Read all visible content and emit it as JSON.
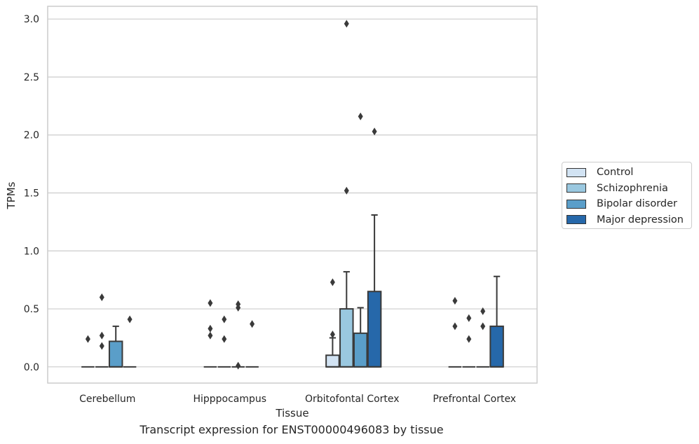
{
  "chart_data": {
    "type": "box",
    "xlabel": "Tissue",
    "ylabel": "TPMs",
    "caption": "Transcript expression for ENST00000496083 by tissue",
    "categories": [
      "Cerebellum",
      "Hipppocampus",
      "Orbitofontal Cortex",
      "Prefrontal Cortex"
    ],
    "ylim": [
      -0.14,
      3.11
    ],
    "yticks": [
      "0.0",
      "0.5",
      "1.0",
      "1.5",
      "2.0",
      "2.5",
      "3.0"
    ],
    "grid": true,
    "legend_position": "right",
    "series": [
      {
        "name": "Control",
        "color": "#d2e3f3",
        "boxes": [
          {
            "q1": 0,
            "median": 0,
            "q3": 0,
            "whisker_low": 0,
            "whisker_high": 0,
            "outliers": [
              0.24
            ]
          },
          {
            "q1": 0,
            "median": 0,
            "q3": 0,
            "whisker_low": 0,
            "whisker_high": 0,
            "outliers": [
              0.27,
              0.33,
              0.55
            ]
          },
          {
            "q1": 0,
            "median": 0,
            "q3": 0.1,
            "whisker_low": 0,
            "whisker_high": 0.25,
            "outliers": [
              0.28,
              0.73
            ]
          },
          {
            "q1": 0,
            "median": 0,
            "q3": 0,
            "whisker_low": 0,
            "whisker_high": 0,
            "outliers": [
              0.35,
              0.57
            ]
          }
        ]
      },
      {
        "name": "Schizophrenia",
        "color": "#9ac8e0",
        "boxes": [
          {
            "q1": 0,
            "median": 0,
            "q3": 0,
            "whisker_low": 0,
            "whisker_high": 0,
            "outliers": [
              0.18,
              0.27,
              0.6
            ]
          },
          {
            "q1": 0,
            "median": 0,
            "q3": 0,
            "whisker_low": 0,
            "whisker_high": 0,
            "outliers": [
              0.24,
              0.41
            ]
          },
          {
            "q1": 0,
            "median": 0,
            "q3": 0.5,
            "whisker_low": 0,
            "whisker_high": 0.82,
            "outliers": [
              1.52,
              2.96
            ]
          },
          {
            "q1": 0,
            "median": 0,
            "q3": 0,
            "whisker_low": 0,
            "whisker_high": 0,
            "outliers": [
              0.24,
              0.42
            ]
          }
        ]
      },
      {
        "name": "Bipolar disorder",
        "color": "#5a9ec9",
        "boxes": [
          {
            "q1": 0,
            "median": 0,
            "q3": 0.22,
            "whisker_low": 0,
            "whisker_high": 0.35,
            "outliers": []
          },
          {
            "q1": 0,
            "median": 0,
            "q3": 0,
            "whisker_low": 0,
            "whisker_high": 0,
            "outliers": [
              0.01,
              0.51,
              0.54
            ]
          },
          {
            "q1": 0,
            "median": 0,
            "q3": 0.29,
            "whisker_low": 0,
            "whisker_high": 0.51,
            "outliers": [
              2.16
            ]
          },
          {
            "q1": 0,
            "median": 0,
            "q3": 0,
            "whisker_low": 0,
            "whisker_high": 0,
            "outliers": [
              0.35,
              0.48
            ]
          }
        ]
      },
      {
        "name": "Major depression",
        "color": "#2668aa",
        "boxes": [
          {
            "q1": 0,
            "median": 0,
            "q3": 0,
            "whisker_low": 0,
            "whisker_high": 0,
            "outliers": [
              0.41
            ]
          },
          {
            "q1": 0,
            "median": 0,
            "q3": 0,
            "whisker_low": 0,
            "whisker_high": 0,
            "outliers": [
              0.37
            ]
          },
          {
            "q1": 0,
            "median": 0,
            "q3": 0.65,
            "whisker_low": 0,
            "whisker_high": 1.31,
            "outliers": [
              2.03
            ]
          },
          {
            "q1": 0,
            "median": 0,
            "q3": 0.35,
            "whisker_low": 0,
            "whisker_high": 0.78,
            "outliers": []
          }
        ]
      }
    ]
  }
}
